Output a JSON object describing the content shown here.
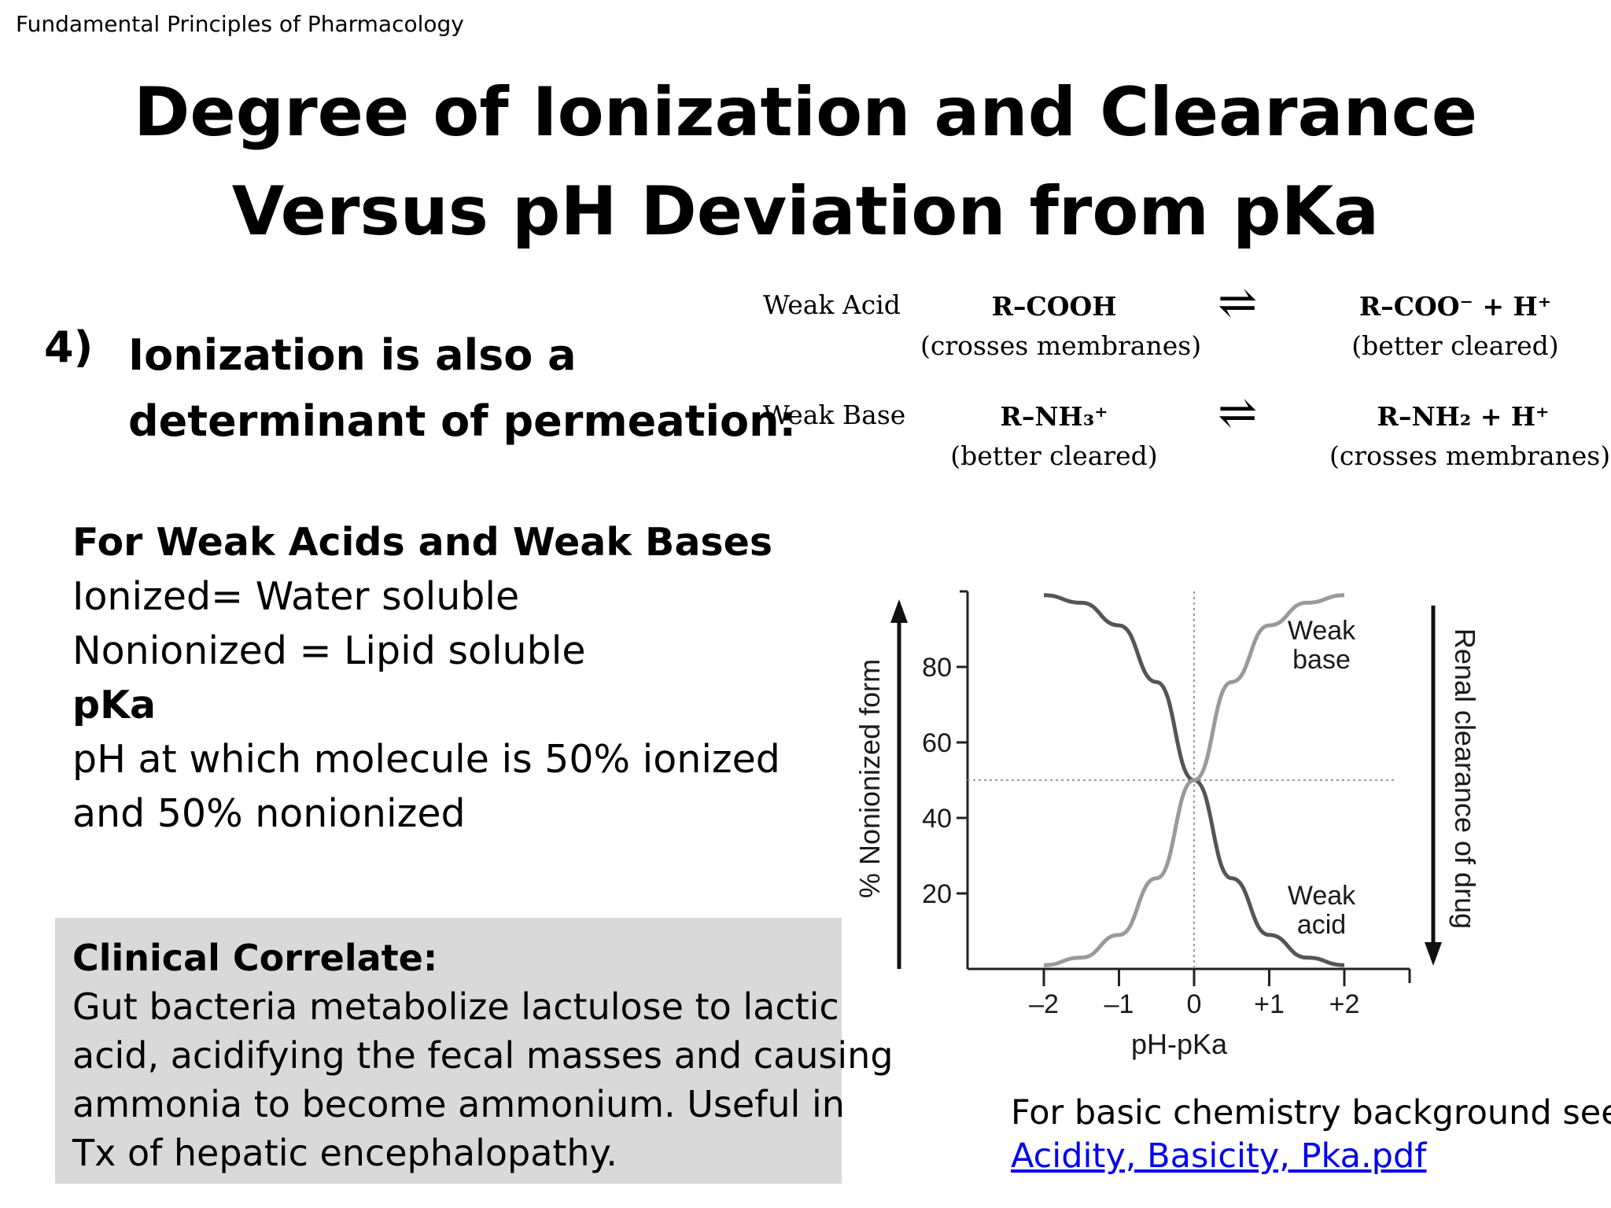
{
  "header": {
    "label": "Fundamental Principles of Pharmacology"
  },
  "title": {
    "line1": "Degree of Ionization and Clearance",
    "line2": "Versus pH Deviation from pKa"
  },
  "point": {
    "number": "4)",
    "line1": "Ionization  is also a",
    "line2": "determinant of permeation:"
  },
  "equations": {
    "acid": {
      "label": "Weak Acid",
      "left_formula": "R–COOH",
      "left_note": "(crosses membranes)",
      "arrow": "⇌",
      "right_formula": "R–COO⁻ + H⁺",
      "right_note": "(better cleared)"
    },
    "base": {
      "label": "Weak Base",
      "left_formula": "R–NH₃⁺",
      "left_note": "(better cleared)",
      "arrow": "⇌",
      "right_formula": "R–NH₂ + H⁺",
      "right_note": "(crosses membranes)"
    }
  },
  "definitions": {
    "heading": "For Weak Acids and Weak Bases",
    "ionized": "Ionized= Water soluble",
    "nonionized": "Nonionized = Lipid soluble",
    "pka_heading": "pKa",
    "pka_line1": "pH at which molecule is 50% ionized",
    "pka_line2": "and 50% nonionized"
  },
  "clinical": {
    "title": "Clinical Correlate:",
    "lines": [
      "Gut bacteria metabolize lactulose to lactic",
      "acid, acidifying the fecal masses and causing",
      "ammonia to become ammonium. Useful in",
      "Tx of hepatic encephalopathy."
    ],
    "background": "#d9d9d9"
  },
  "reference": {
    "label": "For basic  chemistry background see:",
    "link_text": "Acidity, Basicity, Pka.pdf",
    "link_color": "#0000ee"
  },
  "chart_data": {
    "type": "line",
    "xlabel": "pH-pKa",
    "ylabel": "% Nonionized form",
    "right_label": "Renal clearance of drug",
    "x_ticks": [
      "–2",
      "–1",
      "0",
      "+1",
      "+2"
    ],
    "y_ticks": [
      "80",
      "60",
      "40",
      "20"
    ],
    "xlim": [
      -2,
      2
    ],
    "ylim": [
      0,
      100
    ],
    "series": [
      {
        "name": "Weak acid",
        "label_lines": [
          "Weak",
          "acid"
        ],
        "color": "#555555",
        "x": [
          -2,
          -1.5,
          -1,
          -0.5,
          0,
          0.5,
          1,
          1.5,
          2
        ],
        "values": [
          99,
          97,
          91,
          76,
          50,
          24,
          9,
          3,
          1
        ]
      },
      {
        "name": "Weak base",
        "label_lines": [
          "Weak",
          "base"
        ],
        "color": "#9a9a9a",
        "x": [
          -2,
          -1.5,
          -1,
          -0.5,
          0,
          0.5,
          1,
          1.5,
          2
        ],
        "values": [
          1,
          3,
          9,
          24,
          50,
          76,
          91,
          97,
          99
        ]
      }
    ],
    "reference_lines": {
      "x": 0,
      "y": 50
    }
  }
}
